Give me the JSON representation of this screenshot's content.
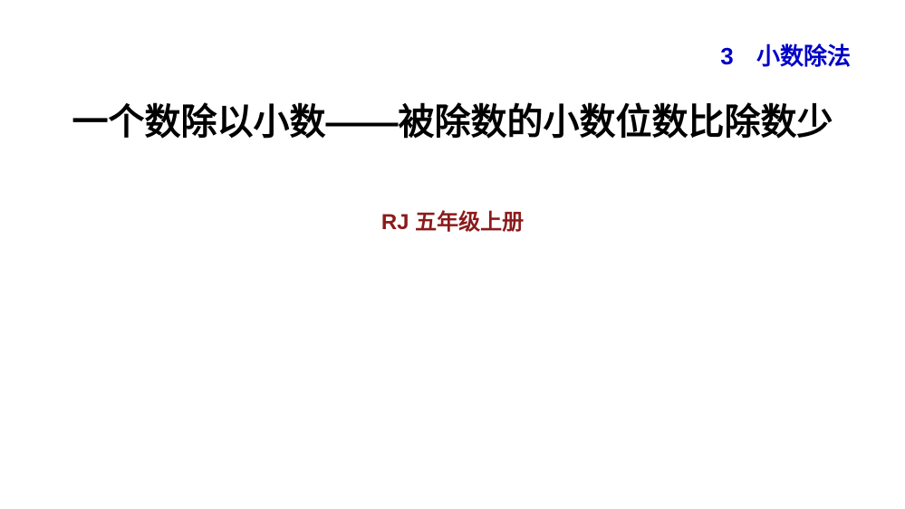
{
  "chapter": {
    "number": "3",
    "title": "小数除法",
    "color": "#0000c8",
    "font_size": 26,
    "font_weight": "bold"
  },
  "main_title": {
    "text": "一个数除以小数——被除数的小数位数比除数少",
    "color": "#000000",
    "font_size": 40,
    "font_weight": "bold"
  },
  "subtitle": {
    "text": "RJ  五年级上册",
    "color": "#8b1a1a",
    "font_size": 24,
    "font_weight": "bold"
  },
  "background_color": "#ffffff"
}
